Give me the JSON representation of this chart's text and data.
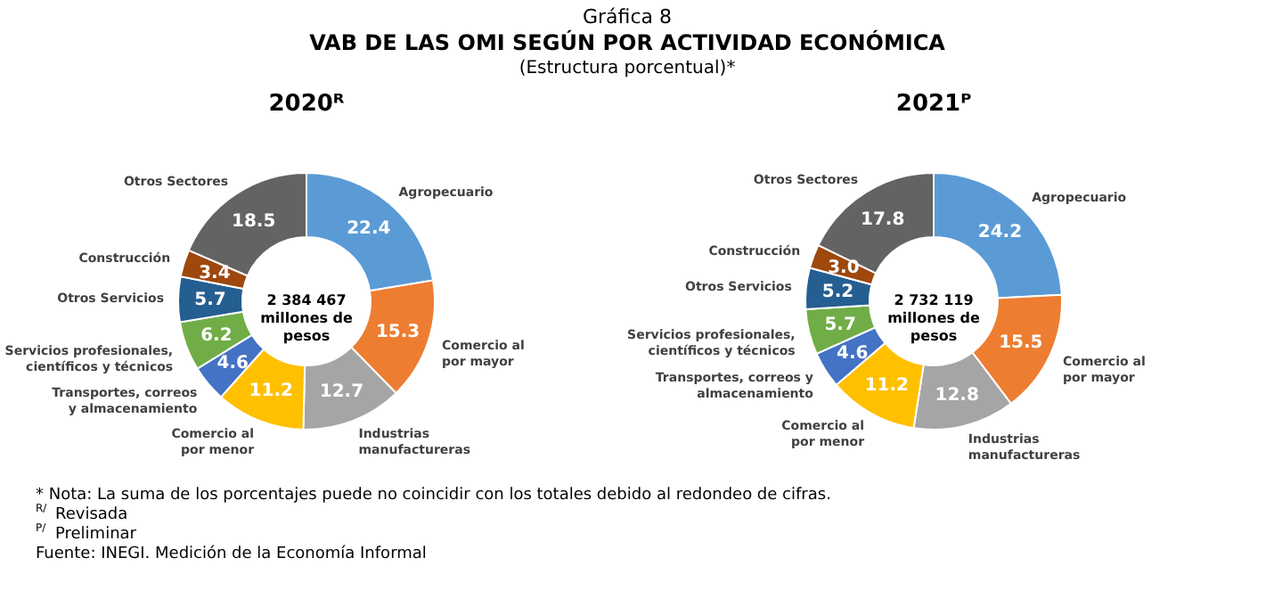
{
  "chart_data": [
    {
      "type": "other",
      "title": "Gráfica 8",
      "subtitle": "VAB DE LAS OMI SEGÚN POR ACTIVIDAD ECONÓMICA",
      "annotations": [
        "(Estructura porcentual)*"
      ]
    },
    {
      "type": "donut",
      "title": "2020ᴿ",
      "categories": [
        "Agropecuario",
        "Comercio al\npor mayor",
        "Industrias\nmanufactureras",
        "Comercio al\npor menor",
        "Transportes, correos\ny almacenamiento",
        "Servicios profesionales,\ncientíficos y técnicos",
        "Otros Servicios",
        "Construcción",
        "Otros Sectores"
      ],
      "values": [
        22.4,
        15.3,
        12.7,
        11.2,
        4.6,
        6.2,
        5.7,
        3.4,
        18.5
      ],
      "colors": [
        "#5b9bd5",
        "#ed7d31",
        "#a5a5a5",
        "#ffc000",
        "#4472c4",
        "#70ad47",
        "#255e91",
        "#9e480e",
        "#636363"
      ],
      "value_labels": [
        "22.4",
        "15.3",
        "12.7",
        "11.2",
        "4.6",
        "6.2",
        "5.7",
        "3.4",
        "18.5"
      ],
      "annotations": [
        "2 384 467\nmillones de\npesos"
      ]
    },
    {
      "type": "donut",
      "title": "2021ᴾ",
      "categories": [
        "Agropecuario",
        "Comercio al\npor mayor",
        "Industrias\nmanufactureras",
        "Comercio al\npor menor",
        "Transportes, correos y\nalmacenamiento",
        "Servicios profesionales,\ncientíficos y técnicos",
        "Otros Servicios",
        "Construcción",
        "Otros Sectores"
      ],
      "values": [
        24.2,
        15.5,
        12.8,
        11.2,
        4.6,
        5.7,
        5.2,
        3.0,
        17.8
      ],
      "colors": [
        "#5b9bd5",
        "#ed7d31",
        "#a5a5a5",
        "#ffc000",
        "#4472c4",
        "#70ad47",
        "#255e91",
        "#9e480e",
        "#636363"
      ],
      "value_labels": [
        "24.2",
        "15.5",
        "12.8",
        "11.2",
        "4.6",
        "5.7",
        "5.2",
        "3.0",
        "17.8"
      ],
      "annotations": [
        "2 732 119\nmillones de\npesos"
      ]
    },
    {
      "type": "other",
      "annotations": [
        "* Nota: La suma de los porcentajes puede no coincidir con los totales debido al redondeo de cifras.",
        "$^{R/}$ Revisada",
        "$^{P/}$ Preliminar",
        "Fuente: INEGI. Medición de la Economía Informal"
      ]
    }
  ]
}
